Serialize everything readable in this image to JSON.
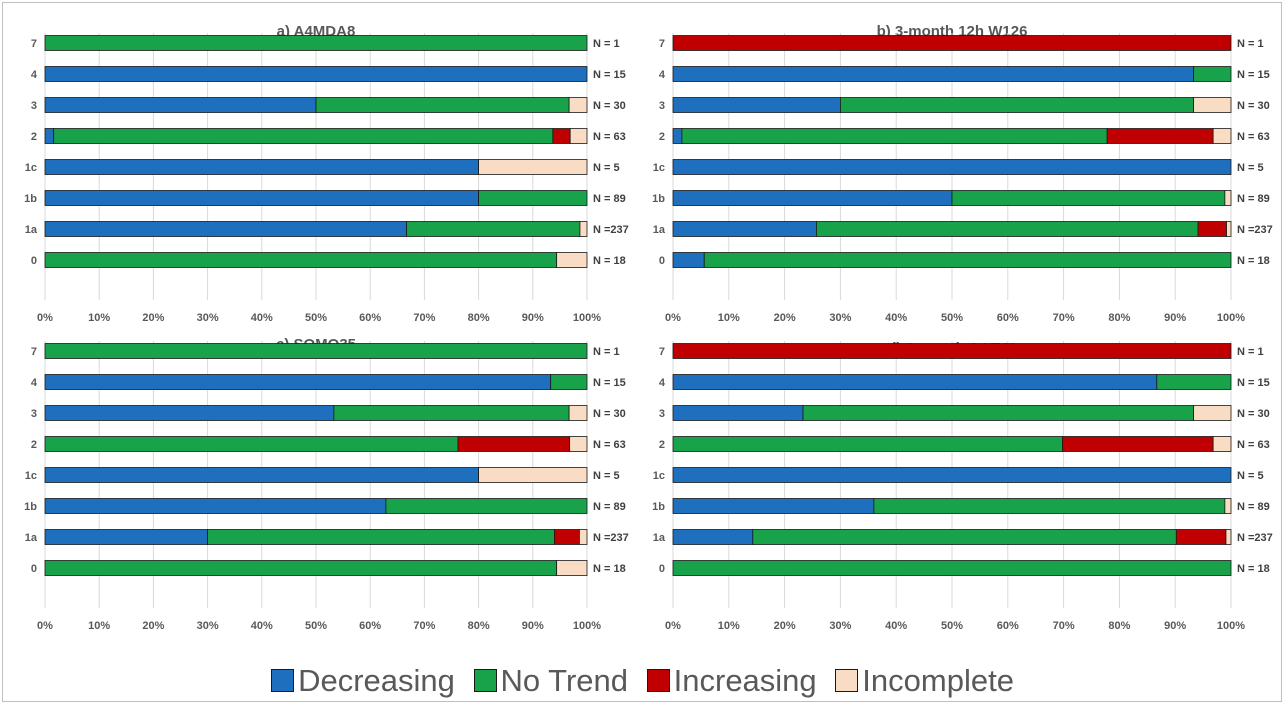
{
  "legend": [
    {
      "label": "Decreasing",
      "color": "#1f6fbf"
    },
    {
      "label": "No Trend",
      "color": "#18a24a"
    },
    {
      "label": "Increasing",
      "color": "#c00000"
    },
    {
      "label": "Incomplete",
      "color": "#f9dcc4"
    }
  ],
  "chart_data": [
    {
      "type": "bar",
      "stacked": "percent",
      "orientation": "horizontal",
      "title": "a) A4MDA8",
      "categories": [
        "7",
        "4",
        "3",
        "2",
        "1c",
        "1b",
        "1a",
        "0"
      ],
      "n_labels": [
        "N = 1",
        "N = 15",
        "N = 30",
        "N = 63",
        "N = 5",
        "N = 89",
        "N =237",
        "N = 18"
      ],
      "xlim": [
        0,
        100
      ],
      "xticks": [
        "0%",
        "10%",
        "20%",
        "30%",
        "40%",
        "50%",
        "60%",
        "70%",
        "80%",
        "90%",
        "100%"
      ],
      "series": [
        {
          "name": "Decreasing",
          "values": [
            0,
            100,
            50,
            1.6,
            80,
            80,
            66.7,
            0
          ]
        },
        {
          "name": "No Trend",
          "values": [
            100,
            0,
            46.7,
            92.1,
            0,
            20,
            32,
            94.4
          ]
        },
        {
          "name": "Increasing",
          "values": [
            0,
            0,
            0,
            3.2,
            0,
            0,
            0,
            0
          ]
        },
        {
          "name": "Incomplete",
          "values": [
            0,
            0,
            3.3,
            3.1,
            20,
            0,
            1.3,
            5.6
          ]
        }
      ]
    },
    {
      "type": "bar",
      "stacked": "percent",
      "orientation": "horizontal",
      "title": "b) 3-month 12h W126",
      "categories": [
        "7",
        "4",
        "3",
        "2",
        "1c",
        "1b",
        "1a",
        "0"
      ],
      "n_labels": [
        "N = 1",
        "N = 15",
        "N = 30",
        "N = 63",
        "N = 5",
        "N = 89",
        "N =237",
        "N = 18"
      ],
      "xlim": [
        0,
        100
      ],
      "xticks": [
        "0%",
        "10%",
        "20%",
        "30%",
        "40%",
        "50%",
        "60%",
        "70%",
        "80%",
        "90%",
        "100%"
      ],
      "series": [
        {
          "name": "Decreasing",
          "values": [
            0,
            93.3,
            30,
            1.6,
            100,
            50,
            25.7,
            5.6
          ]
        },
        {
          "name": "No Trend",
          "values": [
            0,
            6.7,
            63.3,
            76.2,
            0,
            48.9,
            68.4,
            94.4
          ]
        },
        {
          "name": "Increasing",
          "values": [
            100,
            0,
            0,
            19,
            0,
            0,
            5.1,
            0
          ]
        },
        {
          "name": "Incomplete",
          "values": [
            0,
            0,
            6.7,
            3.2,
            0,
            1.1,
            0.8,
            0
          ]
        }
      ]
    },
    {
      "type": "bar",
      "stacked": "percent",
      "orientation": "horizontal",
      "title": "c) SOMO35",
      "categories": [
        "7",
        "4",
        "3",
        "2",
        "1c",
        "1b",
        "1a",
        "0"
      ],
      "n_labels": [
        "N = 1",
        "N = 15",
        "N = 30",
        "N = 63",
        "N = 5",
        "N = 89",
        "N =237",
        "N = 18"
      ],
      "xlim": [
        0,
        100
      ],
      "xticks": [
        "0%",
        "10%",
        "20%",
        "30%",
        "40%",
        "50%",
        "60%",
        "70%",
        "80%",
        "90%",
        "100%"
      ],
      "series": [
        {
          "name": "Decreasing",
          "values": [
            0,
            93.3,
            53.3,
            0,
            80,
            62.9,
            30,
            0
          ]
        },
        {
          "name": "No Trend",
          "values": [
            100,
            6.7,
            43.4,
            76.2,
            0,
            37.1,
            64,
            94.4
          ]
        },
        {
          "name": "Increasing",
          "values": [
            0,
            0,
            0,
            20.6,
            0,
            0,
            4.6,
            0
          ]
        },
        {
          "name": "Incomplete",
          "values": [
            0,
            0,
            3.3,
            3.2,
            20,
            0,
            1.4,
            5.6
          ]
        }
      ]
    },
    {
      "type": "bar",
      "stacked": "percent",
      "orientation": "horizontal",
      "title": "d) 3-month AOT40",
      "categories": [
        "7",
        "4",
        "3",
        "2",
        "1c",
        "1b",
        "1a",
        "0"
      ],
      "n_labels": [
        "N = 1",
        "N = 15",
        "N = 30",
        "N = 63",
        "N = 5",
        "N = 89",
        "N =237",
        "N = 18"
      ],
      "xlim": [
        0,
        100
      ],
      "xticks": [
        "0%",
        "10%",
        "20%",
        "30%",
        "40%",
        "50%",
        "60%",
        "70%",
        "80%",
        "90%",
        "100%"
      ],
      "series": [
        {
          "name": "Decreasing",
          "values": [
            0,
            86.7,
            23.3,
            0,
            100,
            36,
            14.3,
            0
          ]
        },
        {
          "name": "No Trend",
          "values": [
            0,
            13.3,
            70,
            69.8,
            0,
            62.9,
            75.9,
            100
          ]
        },
        {
          "name": "Increasing",
          "values": [
            100,
            0,
            0,
            27,
            0,
            0,
            8.9,
            0
          ]
        },
        {
          "name": "Incomplete",
          "values": [
            0,
            0,
            6.7,
            3.2,
            0,
            1.1,
            0.9,
            0
          ]
        }
      ]
    }
  ]
}
